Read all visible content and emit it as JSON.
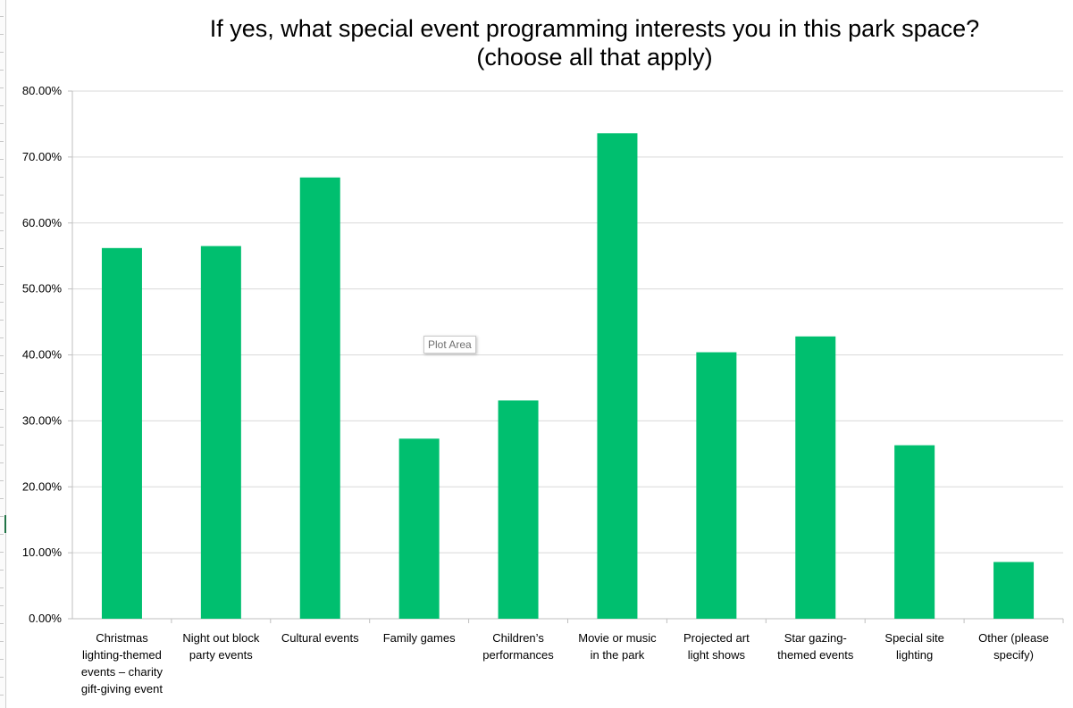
{
  "chart_data": {
    "type": "bar",
    "title": "If yes, what special event programming interests you in this park space? (choose all that apply)",
    "title_lines": [
      "If yes, what special event programming interests you in this park space?",
      "(choose all that apply)"
    ],
    "categories": [
      "Christmas lighting-themed events – charity gift-giving event",
      "Night out block party events",
      "Cultural events",
      "Family games",
      "Children’s performances",
      "Movie or music in the park",
      "Projected art light shows",
      "Star gazing-themed events",
      "Special site lighting",
      "Other (please specify)"
    ],
    "category_label_lines": [
      [
        "Christmas",
        "lighting-themed",
        "events – charity",
        "gift-giving event"
      ],
      [
        "Night out block",
        "party events"
      ],
      [
        "Cultural events"
      ],
      [
        "Family games"
      ],
      [
        "Children’s",
        "performances"
      ],
      [
        "Movie or music",
        "in the park"
      ],
      [
        "Projected art",
        "light shows"
      ],
      [
        "Star gazing-",
        "themed events"
      ],
      [
        "Special site",
        "lighting"
      ],
      [
        "Other (please",
        "specify)"
      ]
    ],
    "values": [
      56.2,
      56.5,
      66.9,
      27.3,
      33.1,
      73.6,
      40.4,
      42.8,
      26.3,
      8.6
    ],
    "value_unit": "%",
    "yticks": [
      "0.00%",
      "10.00%",
      "20.00%",
      "30.00%",
      "40.00%",
      "50.00%",
      "60.00%",
      "70.00%",
      "80.00%"
    ],
    "ylim": [
      0,
      80
    ],
    "grid": true,
    "legend": "none",
    "bar_color": "#00BF6F",
    "xlabel": "",
    "ylabel": ""
  },
  "tooltip": {
    "label": "Plot Area"
  }
}
